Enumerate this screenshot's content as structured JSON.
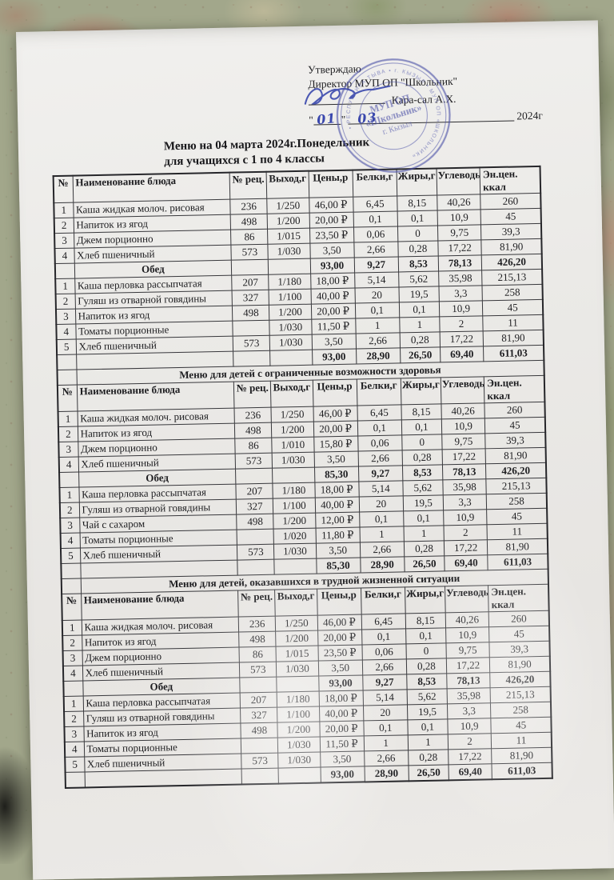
{
  "photo": {
    "colors": {
      "fabric_green": "#a2a78b",
      "fabric_rose": "#bd8274",
      "paper": "#edecea",
      "ink": "#1f1f22",
      "stamp_blue": "#4d53a8",
      "handwriting_blue": "#3947ad"
    }
  },
  "header": {
    "approve_line1": "Утверждаю",
    "approve_line2": "Директор МУП ОП \"Школьник\"",
    "signatory": "Кара-сал А.Х.",
    "quote_open": "\"",
    "date_day": "01",
    "quote_close": "\"",
    "date_month": "03",
    "date_year": "2024г",
    "title_line1": "Меню на 04 марта 2024г.Понедельник",
    "title_line2": "для учащихся с 1 по 4 классы"
  },
  "stamp": {
    "center_line1": "МУП ОП",
    "center_line2": "«Школьник»",
    "center_line3": "г. Кызыл",
    "ring_text": "• РЕСПУБЛИКА ТЫВА • г. КЫЗЫЛ • МУП ОП «ШКОЛЬНИК»"
  },
  "menu_table": {
    "columns": [
      "№",
      "Наименование блюда",
      "№ рец.",
      "Выход,г",
      "Цены,р",
      "Белки,г",
      "Жиры,г",
      "Углеводы",
      "Эн.цен. ккал"
    ],
    "subtotal_label": "Обед",
    "menus": [
      {
        "title": "",
        "breakfast": [
          [
            "1",
            "Каша жидкая молоч. рисовая",
            "236",
            "1/250",
            "46,00 ₽",
            "6,45",
            "8,15",
            "40,26",
            "260"
          ],
          [
            "2",
            "Напиток из ягод",
            "498",
            "1/200",
            "20,00 ₽",
            "0,1",
            "0,1",
            "10,9",
            "45"
          ],
          [
            "3",
            "Джем порционно",
            "86",
            "1/015",
            "23,50 ₽",
            "0,06",
            "0",
            "9,75",
            "39,3"
          ],
          [
            "4",
            "Хлеб пшеничный",
            "573",
            "1/030",
            "3,50",
            "2,66",
            "0,28",
            "17,22",
            "81,90"
          ]
        ],
        "subtotal_values": [
          "93,00",
          "9,27",
          "8,53",
          "78,13",
          "426,20"
        ],
        "lunch": [
          [
            "1",
            "Каша перловка рассыпчатая",
            "207",
            "1/180",
            "18,00 ₽",
            "5,14",
            "5,62",
            "35,98",
            "215,13"
          ],
          [
            "2",
            "Гуляш из отварной говядины",
            "327",
            "1/100",
            "40,00 ₽",
            "20",
            "19,5",
            "3,3",
            "258"
          ],
          [
            "3",
            "Напиток из ягод",
            "498",
            "1/200",
            "20,00 ₽",
            "0,1",
            "0,1",
            "10,9",
            "45"
          ],
          [
            "4",
            "Томаты порционные",
            "",
            "1/030",
            "11,50 ₽",
            "1",
            "1",
            "2",
            "11"
          ],
          [
            "5",
            "Хлеб пшеничный",
            "573",
            "1/030",
            "3,50",
            "2,66",
            "0,28",
            "17,22",
            "81,90"
          ]
        ],
        "total_values": [
          "93,00",
          "28,90",
          "26,50",
          "69,40",
          "611,03"
        ]
      },
      {
        "title": "Меню для детей с ограниченные возможности здоровья",
        "breakfast": [
          [
            "1",
            "Каша жидкая молоч. рисовая",
            "236",
            "1/250",
            "46,00 ₽",
            "6,45",
            "8,15",
            "40,26",
            "260"
          ],
          [
            "2",
            "Напиток из ягод",
            "498",
            "1/200",
            "20,00 ₽",
            "0,1",
            "0,1",
            "10,9",
            "45"
          ],
          [
            "3",
            "Джем порционно",
            "86",
            "1/010",
            "15,80 ₽",
            "0,06",
            "0",
            "9,75",
            "39,3"
          ],
          [
            "4",
            "Хлеб пшеничный",
            "573",
            "1/030",
            "3,50",
            "2,66",
            "0,28",
            "17,22",
            "81,90"
          ]
        ],
        "subtotal_values": [
          "85,30",
          "9,27",
          "8,53",
          "78,13",
          "426,20"
        ],
        "lunch": [
          [
            "1",
            "Каша перловка рассыпчатая",
            "207",
            "1/180",
            "18,00 ₽",
            "5,14",
            "5,62",
            "35,98",
            "215,13"
          ],
          [
            "2",
            "Гуляш из отварной говядины",
            "327",
            "1/100",
            "40,00 ₽",
            "20",
            "19,5",
            "3,3",
            "258"
          ],
          [
            "3",
            "Чай с сахаром",
            "498",
            "1/200",
            "12,00 ₽",
            "0,1",
            "0,1",
            "10,9",
            "45"
          ],
          [
            "4",
            "Томаты порционные",
            "",
            "1/020",
            "11,80 ₽",
            "1",
            "1",
            "2",
            "11"
          ],
          [
            "5",
            "Хлеб пшеничный",
            "573",
            "1/030",
            "3,50",
            "2,66",
            "0,28",
            "17,22",
            "81,90"
          ]
        ],
        "total_values": [
          "85,30",
          "28,90",
          "26,50",
          "69,40",
          "611,03"
        ]
      },
      {
        "title": "Меню для детей, оказавшихся в трудной жизненной ситуации",
        "breakfast": [
          [
            "1",
            "Каша жидкая молоч. рисовая",
            "236",
            "1/250",
            "46,00 ₽",
            "6,45",
            "8,15",
            "40,26",
            "260"
          ],
          [
            "2",
            "Напиток из ягод",
            "498",
            "1/200",
            "20,00 ₽",
            "0,1",
            "0,1",
            "10,9",
            "45"
          ],
          [
            "3",
            "Джем порционно",
            "86",
            "1/015",
            "23,50 ₽",
            "0,06",
            "0",
            "9,75",
            "39,3"
          ],
          [
            "4",
            "Хлеб пшеничный",
            "573",
            "1/030",
            "3,50",
            "2,66",
            "0,28",
            "17,22",
            "81,90"
          ]
        ],
        "subtotal_values": [
          "93,00",
          "9,27",
          "8,53",
          "78,13",
          "426,20"
        ],
        "lunch": [
          [
            "1",
            "Каша перловка рассыпчатая",
            "207",
            "1/180",
            "18,00 ₽",
            "5,14",
            "5,62",
            "35,98",
            "215,13"
          ],
          [
            "2",
            "Гуляш из отварной говядины",
            "327",
            "1/100",
            "40,00 ₽",
            "20",
            "19,5",
            "3,3",
            "258"
          ],
          [
            "3",
            "Напиток из ягод",
            "498",
            "1/200",
            "20,00 ₽",
            "0,1",
            "0,1",
            "10,9",
            "45"
          ],
          [
            "4",
            "Томаты порционные",
            "",
            "1/030",
            "11,50 ₽",
            "1",
            "1",
            "2",
            "11"
          ],
          [
            "5",
            "Хлеб пшеничный",
            "573",
            "1/030",
            "3,50",
            "2,66",
            "0,28",
            "17,22",
            "81,90"
          ]
        ],
        "total_values": [
          "93,00",
          "28,90",
          "26,50",
          "69,40",
          "611,03"
        ]
      }
    ]
  }
}
